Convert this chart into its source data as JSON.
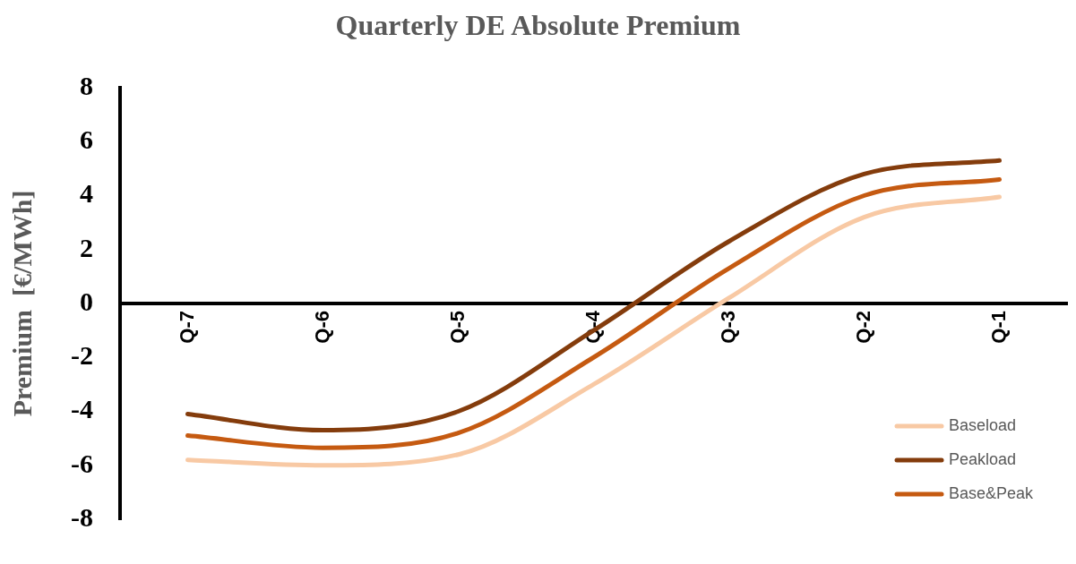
{
  "chart_data": {
    "type": "line",
    "title": "Quarterly DE Absolute Premium",
    "ylabel": "Premium  [€/MWh]",
    "categories": [
      "Q-7",
      "Q-6",
      "Q-5",
      "Q-4",
      "Q-3",
      "Q-2",
      "Q-1"
    ],
    "series": [
      {
        "name": "Baseload",
        "color": "#f8c9a4",
        "values": [
          -5.8,
          -6.0,
          -5.6,
          -3.0,
          0.2,
          3.2,
          3.95
        ]
      },
      {
        "name": "Peakload",
        "color": "#843c0c",
        "values": [
          -4.1,
          -4.7,
          -4.0,
          -1.0,
          2.3,
          4.8,
          5.3
        ]
      },
      {
        "name": "Base&Peak",
        "color": "#c55a11",
        "values": [
          -4.9,
          -5.35,
          -4.8,
          -2.0,
          1.3,
          4.0,
          4.6
        ]
      }
    ],
    "ylim": [
      -8,
      8
    ],
    "yticks": [
      -8,
      -6,
      -4,
      -2,
      0,
      2,
      4,
      6,
      8
    ],
    "grid": false,
    "legend": "bottom right",
    "marker": "none",
    "line_style": "solid"
  }
}
